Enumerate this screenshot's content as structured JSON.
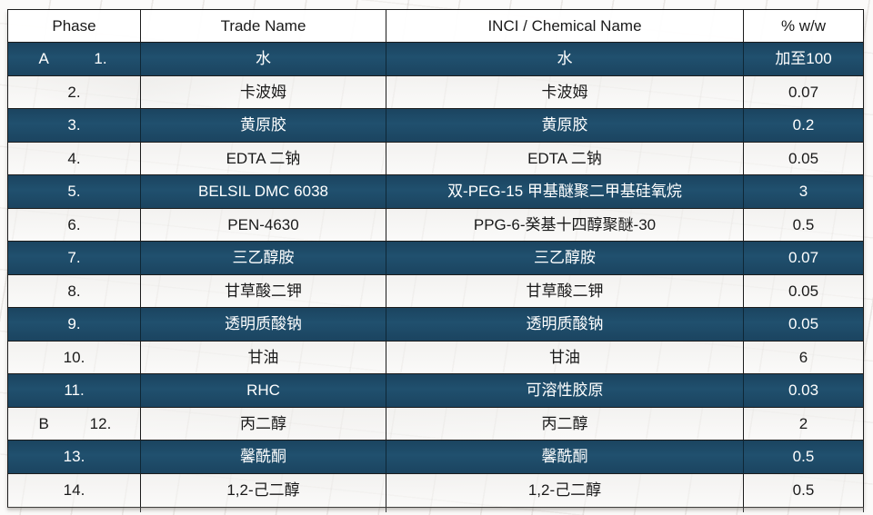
{
  "table": {
    "columns": [
      "Phase",
      "Trade Name",
      "INCI / Chemical Name",
      "% w/w"
    ],
    "rows": [
      {
        "phase": "A",
        "num": "1.",
        "trade": "水",
        "inci": "水",
        "pct": "加至100",
        "dark": true
      },
      {
        "phase": "",
        "num": "2.",
        "trade": "卡波姆",
        "inci": "卡波姆",
        "pct": "0.07",
        "dark": false
      },
      {
        "phase": "",
        "num": "3.",
        "trade": "黄原胶",
        "inci": "黄原胶",
        "pct": "0.2",
        "dark": true
      },
      {
        "phase": "",
        "num": "4.",
        "trade": "EDTA 二钠",
        "inci": "EDTA 二钠",
        "pct": "0.05",
        "dark": false
      },
      {
        "phase": "",
        "num": "5.",
        "trade": "BELSIL DMC 6038",
        "inci": "双-PEG-15 甲基醚聚二甲基硅氧烷",
        "pct": "3",
        "dark": true
      },
      {
        "phase": "",
        "num": "6.",
        "trade": "PEN-4630",
        "inci": "PPG-6-癸基十四醇聚醚-30",
        "pct": "0.5",
        "dark": false
      },
      {
        "phase": "",
        "num": "7.",
        "trade": "三乙醇胺",
        "inci": "三乙醇胺",
        "pct": "0.07",
        "dark": true
      },
      {
        "phase": "",
        "num": "8.",
        "trade": "甘草酸二钾",
        "inci": "甘草酸二钾",
        "pct": "0.05",
        "dark": false
      },
      {
        "phase": "",
        "num": "9.",
        "trade": "透明质酸钠",
        "inci": "透明质酸钠",
        "pct": "0.05",
        "dark": true
      },
      {
        "phase": "",
        "num": "10.",
        "trade": "甘油",
        "inci": "甘油",
        "pct": "6",
        "dark": false
      },
      {
        "phase": "",
        "num": "11.",
        "trade": "RHC",
        "inci": "可溶性胶原",
        "pct": "0.03",
        "dark": true
      },
      {
        "phase": "B",
        "num": "12.",
        "trade": "丙二醇",
        "inci": "丙二醇",
        "pct": "2",
        "dark": false
      },
      {
        "phase": "",
        "num": "13.",
        "trade": "馨酰酮",
        "inci": "馨酰酮",
        "pct": "0.5",
        "dark": true
      },
      {
        "phase": "",
        "num": "14.",
        "trade": "1,2-己二醇",
        "inci": "1,2-己二醇",
        "pct": "0.5",
        "dark": false
      }
    ],
    "colors": {
      "dark_row": "#1e4a66",
      "border": "#1c1c1c",
      "light_row": "#f5f4f2",
      "header_bg": "#ffffff",
      "text_dark": "#1a1a1a",
      "text_light": "#ffffff"
    }
  }
}
